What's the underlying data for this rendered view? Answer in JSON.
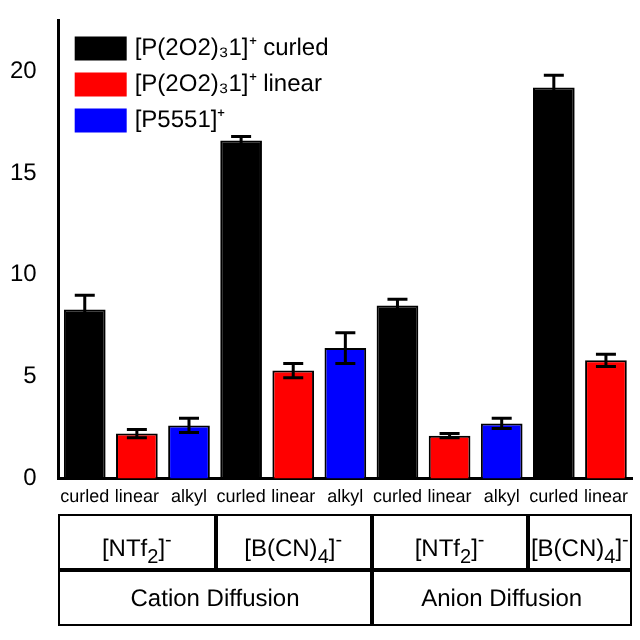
{
  "chart_data": {
    "type": "bar",
    "stacked": true,
    "categories": [
      "curled",
      "linear",
      "alkyl",
      "curled",
      "linear",
      "alkyl",
      "curled",
      "linear",
      "alkyl",
      "curled",
      "linear"
    ],
    "series": [
      {
        "name": "[P(2O2)₃1]⁺ curled",
        "color": "#000000",
        "values": [
          8.3,
          null,
          null,
          16.6,
          null,
          null,
          8.5,
          null,
          null,
          19.2,
          null
        ],
        "errors": [
          0.7,
          null,
          null,
          0.2,
          null,
          null,
          0.3,
          null,
          null,
          0.6,
          null
        ]
      },
      {
        "name": "[P(2O2)₃1]⁺ linear",
        "color": "#ff0000",
        "values": [
          null,
          2.2,
          null,
          null,
          5.3,
          null,
          null,
          2.1,
          null,
          null,
          5.8
        ],
        "errors": [
          null,
          0.2,
          null,
          null,
          0.35,
          null,
          null,
          0.1,
          null,
          null,
          0.3
        ]
      },
      {
        "name": "[P5551]⁺",
        "color": "#0000ff",
        "values": [
          null,
          null,
          2.6,
          null,
          null,
          6.4,
          null,
          null,
          2.7,
          null,
          null
        ],
        "errors": [
          null,
          null,
          0.35,
          null,
          null,
          0.75,
          null,
          null,
          0.25,
          null,
          null
        ]
      }
    ],
    "ylim": [
      0,
      22.5
    ],
    "yticks": [
      0,
      5,
      10,
      15,
      20
    ],
    "legend": "top left",
    "grid": false,
    "annotations": [
      "[NTf$_{2}$]$^{-}$",
      "[B(CN)$_{4}$]$^{-}$",
      "[NTf$_{2}$]$^{-}$",
      "[B(CN)$_{4}$]$^{-}$",
      "Cation Diffusion",
      "Anion Diffusion"
    ]
  }
}
